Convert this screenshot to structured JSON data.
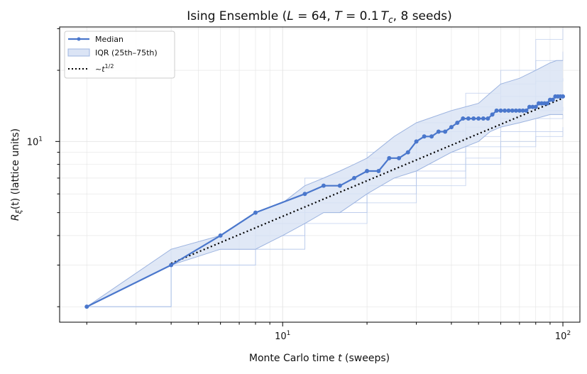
{
  "chart_data": {
    "type": "line",
    "title": "Ising Ensemble (L = 64, T = 0.1 T_c, 8 seeds)",
    "title_parts": {
      "prefix": "Ising Ensemble (",
      "L_symbol": "L",
      "L_value": " = 64, ",
      "T_symbol": "T",
      "T_value": " = 0.1",
      "Tc_symbol": "T",
      "Tc_sub": "c",
      "suffix": ", 8 seeds)"
    },
    "xlabel": "Monte Carlo time t (sweeps)",
    "xlabel_parts": {
      "text": "Monte Carlo time ",
      "var": "t",
      "unit": " (sweeps)"
    },
    "ylabel": "Rξ(t) (lattice units)",
    "ylabel_parts": {
      "R": "R",
      "sub": "ξ",
      "arg": "(t)",
      "unit": " (lattice units)"
    },
    "x_scale": "log",
    "y_scale": "log",
    "xlim": [
      1.6,
      115
    ],
    "ylim": [
      1.72,
      30.5
    ],
    "grid": true,
    "legend_position": "top-left",
    "x_ticks": [
      {
        "value": 10,
        "base": "10",
        "exp": "1"
      },
      {
        "value": 100,
        "base": "10",
        "exp": "2"
      }
    ],
    "y_ticks": [
      {
        "value": 10,
        "base": "10",
        "exp": "1"
      }
    ],
    "legend": {
      "median": "Median",
      "iqr": "IQR (25th–75th)",
      "fit_prefix": "~",
      "fit_var": "t",
      "fit_exp": "1/2"
    },
    "colors": {
      "median": "#4a77cc",
      "band_fill": "#dbe4f5",
      "band_edge": "#9db4e0",
      "seeds": "#b7c8eb",
      "fit": "#000000",
      "grid": "#e3e3e3"
    },
    "median": {
      "x": [
        2,
        4,
        6,
        8,
        12,
        14,
        16,
        18,
        20,
        22,
        24,
        26,
        28,
        30,
        32,
        34,
        36,
        38,
        40,
        42,
        44,
        46,
        48,
        50,
        52,
        54,
        56,
        58,
        60,
        62,
        64,
        66,
        68,
        70,
        72,
        74,
        76,
        78,
        80,
        82,
        84,
        86,
        88,
        90,
        92,
        94,
        96,
        98,
        100
      ],
      "y": [
        2.0,
        3.0,
        4.0,
        5.0,
        6.0,
        6.5,
        6.5,
        7.0,
        7.5,
        7.5,
        8.5,
        8.5,
        9.0,
        10.0,
        10.5,
        10.5,
        11.0,
        11.0,
        11.5,
        12.0,
        12.5,
        12.5,
        12.5,
        12.5,
        12.5,
        12.5,
        13.0,
        13.5,
        13.5,
        13.5,
        13.5,
        13.5,
        13.5,
        13.5,
        13.5,
        13.5,
        14.0,
        14.0,
        14.0,
        14.5,
        14.5,
        14.5,
        14.5,
        15.0,
        15.0,
        15.5,
        15.5,
        15.5,
        15.5
      ]
    },
    "iqr": {
      "x": [
        2,
        4,
        6,
        8,
        10,
        12,
        14,
        16,
        18,
        20,
        25,
        30,
        40,
        50,
        55,
        60,
        70,
        80,
        90,
        95,
        100
      ],
      "lower": [
        2.0,
        3.0,
        3.5,
        3.5,
        4.0,
        4.5,
        5.0,
        5.0,
        5.5,
        6.0,
        7.0,
        7.5,
        9.0,
        10.0,
        11.0,
        11.5,
        12.0,
        12.5,
        13.0,
        13.0,
        13.0
      ],
      "upper": [
        2.0,
        3.5,
        4.0,
        5.0,
        5.5,
        6.5,
        7.0,
        7.5,
        8.0,
        8.5,
        10.5,
        12.0,
        13.5,
        14.5,
        16.0,
        17.5,
        18.5,
        20.0,
        21.5,
        22.0,
        22.0
      ]
    },
    "seeds": [
      {
        "x": [
          2,
          4,
          8,
          12,
          20,
          30,
          45,
          60,
          80,
          100
        ],
        "y": [
          2.0,
          3.5,
          4.5,
          6.0,
          8.5,
          12.0,
          16.0,
          20.0,
          27.0,
          30.0
        ]
      },
      {
        "x": [
          2,
          4,
          8,
          12,
          20,
          30,
          45,
          60,
          80,
          100
        ],
        "y": [
          2.0,
          3.0,
          4.5,
          6.0,
          7.5,
          10.0,
          13.0,
          15.5,
          18.0,
          18.5
        ]
      },
      {
        "x": [
          2,
          4,
          8,
          12,
          20,
          30,
          45,
          60,
          80,
          100
        ],
        "y": [
          2.0,
          3.0,
          4.0,
          5.5,
          7.0,
          9.0,
          11.5,
          13.5,
          15.5,
          16.0
        ]
      },
      {
        "x": [
          2,
          4,
          8,
          12,
          20,
          30,
          45,
          60,
          80,
          100
        ],
        "y": [
          2.0,
          3.0,
          4.0,
          5.0,
          6.5,
          8.0,
          10.5,
          12.5,
          13.5,
          14.0
        ]
      },
      {
        "x": [
          2,
          4,
          8,
          12,
          20,
          30,
          45,
          60,
          80,
          100
        ],
        "y": [
          2.0,
          3.0,
          3.5,
          5.0,
          6.0,
          7.5,
          9.5,
          11.0,
          12.5,
          13.0
        ]
      },
      {
        "x": [
          2,
          4,
          8,
          12,
          20,
          30,
          45,
          60,
          80,
          100
        ],
        "y": [
          2.0,
          3.0,
          3.5,
          4.5,
          5.5,
          6.5,
          8.0,
          9.5,
          11.0,
          11.5
        ]
      },
      {
        "x": [
          2,
          4,
          8,
          12,
          20,
          30,
          45,
          60,
          80,
          100
        ],
        "y": [
          2.0,
          3.5,
          5.0,
          7.0,
          9.0,
          11.0,
          14.0,
          17.5,
          22.0,
          24.0
        ]
      },
      {
        "x": [
          2,
          4,
          8,
          12,
          20,
          30,
          45,
          60,
          80,
          100
        ],
        "y": [
          2.0,
          3.0,
          4.0,
          5.5,
          6.5,
          7.0,
          8.5,
          10.0,
          10.5,
          11.0
        ]
      }
    ],
    "fit": {
      "x": [
        4,
        100
      ],
      "y": [
        3.05,
        15.25
      ],
      "exponent": 0.5
    }
  }
}
